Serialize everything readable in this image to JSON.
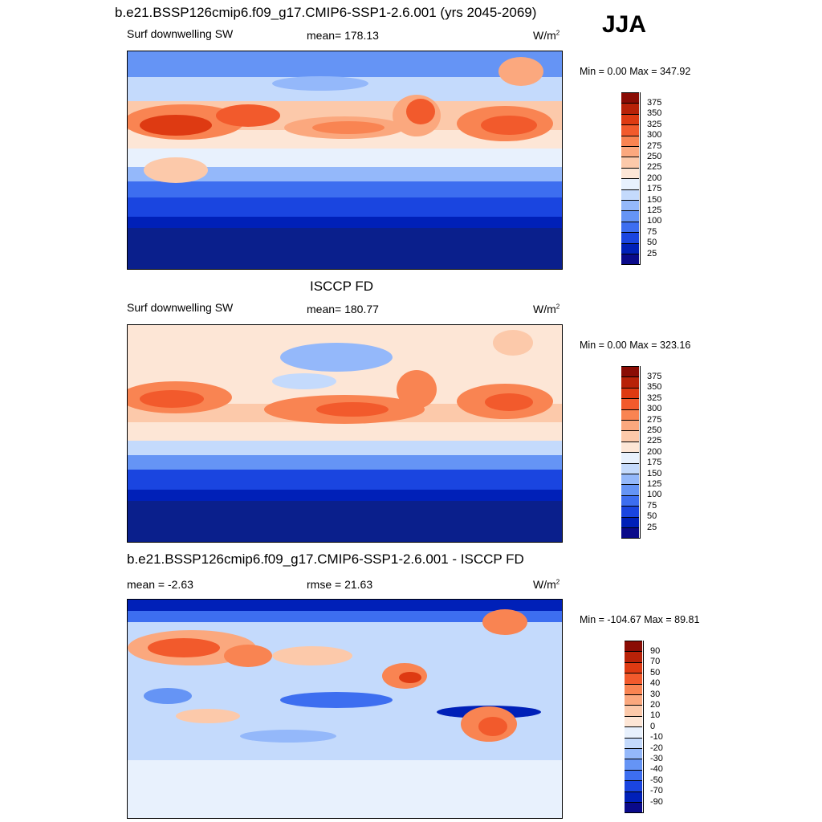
{
  "season": "JJA",
  "panels": [
    {
      "title": "b.e21.BSSP126cmip6.f09_g17.CMIP6-SSP1-2.6.001 (yrs 2045-2069)",
      "left_label": "Surf downwelling SW",
      "center_label": "mean= 178.13",
      "units_base": "W/m",
      "units_sup": "2",
      "minmax": "Min =   0.00 Max = 347.92",
      "colorbar": {
        "colors": [
          "#0a0a8a",
          "#0020b8",
          "#1a45e0",
          "#3d6ef0",
          "#6594f5",
          "#94b8fa",
          "#c4dafc",
          "#e8f1fd",
          "#fde6d6",
          "#fcc9aa",
          "#fba87e",
          "#f98452",
          "#f25a2c",
          "#de3a12",
          "#b82208",
          "#8a0c04"
        ],
        "labels": [
          "25",
          "50",
          "75",
          "100",
          "125",
          "150",
          "175",
          "200",
          "225",
          "250",
          "275",
          "300",
          "325",
          "350",
          "375"
        ]
      }
    },
    {
      "title": "ISCCP FD",
      "left_label": "Surf downwelling SW",
      "center_label": "mean= 180.77",
      "units_base": "W/m",
      "units_sup": "2",
      "minmax": "Min =   0.00 Max = 323.16",
      "colorbar": {
        "colors": [
          "#0a0a8a",
          "#0020b8",
          "#1a45e0",
          "#3d6ef0",
          "#6594f5",
          "#94b8fa",
          "#c4dafc",
          "#e8f1fd",
          "#fde6d6",
          "#fcc9aa",
          "#fba87e",
          "#f98452",
          "#f25a2c",
          "#de3a12",
          "#b82208",
          "#8a0c04"
        ],
        "labels": [
          "25",
          "50",
          "75",
          "100",
          "125",
          "150",
          "175",
          "200",
          "225",
          "250",
          "275",
          "300",
          "325",
          "350",
          "375"
        ]
      }
    },
    {
      "title": "b.e21.BSSP126cmip6.f09_g17.CMIP6-SSP1-2.6.001 - ISCCP FD",
      "left_label": "mean =  -2.63",
      "center_label": "rmse =  21.63",
      "units_base": "W/m",
      "units_sup": "2",
      "minmax": "Min = -104.67 Max =  89.81",
      "colorbar": {
        "colors": [
          "#0a0a8a",
          "#0020b8",
          "#1a45e0",
          "#3d6ef0",
          "#6594f5",
          "#94b8fa",
          "#c4dafc",
          "#e8f1fd",
          "#fde6d6",
          "#fcc9aa",
          "#fba87e",
          "#f98452",
          "#f25a2c",
          "#de3a12",
          "#b82208",
          "#8a0c04"
        ],
        "labels": [
          "-90",
          "-70",
          "-50",
          "-40",
          "-30",
          "-20",
          "-10",
          "0",
          "10",
          "20",
          "30",
          "40",
          "50",
          "70",
          "90"
        ]
      }
    }
  ]
}
